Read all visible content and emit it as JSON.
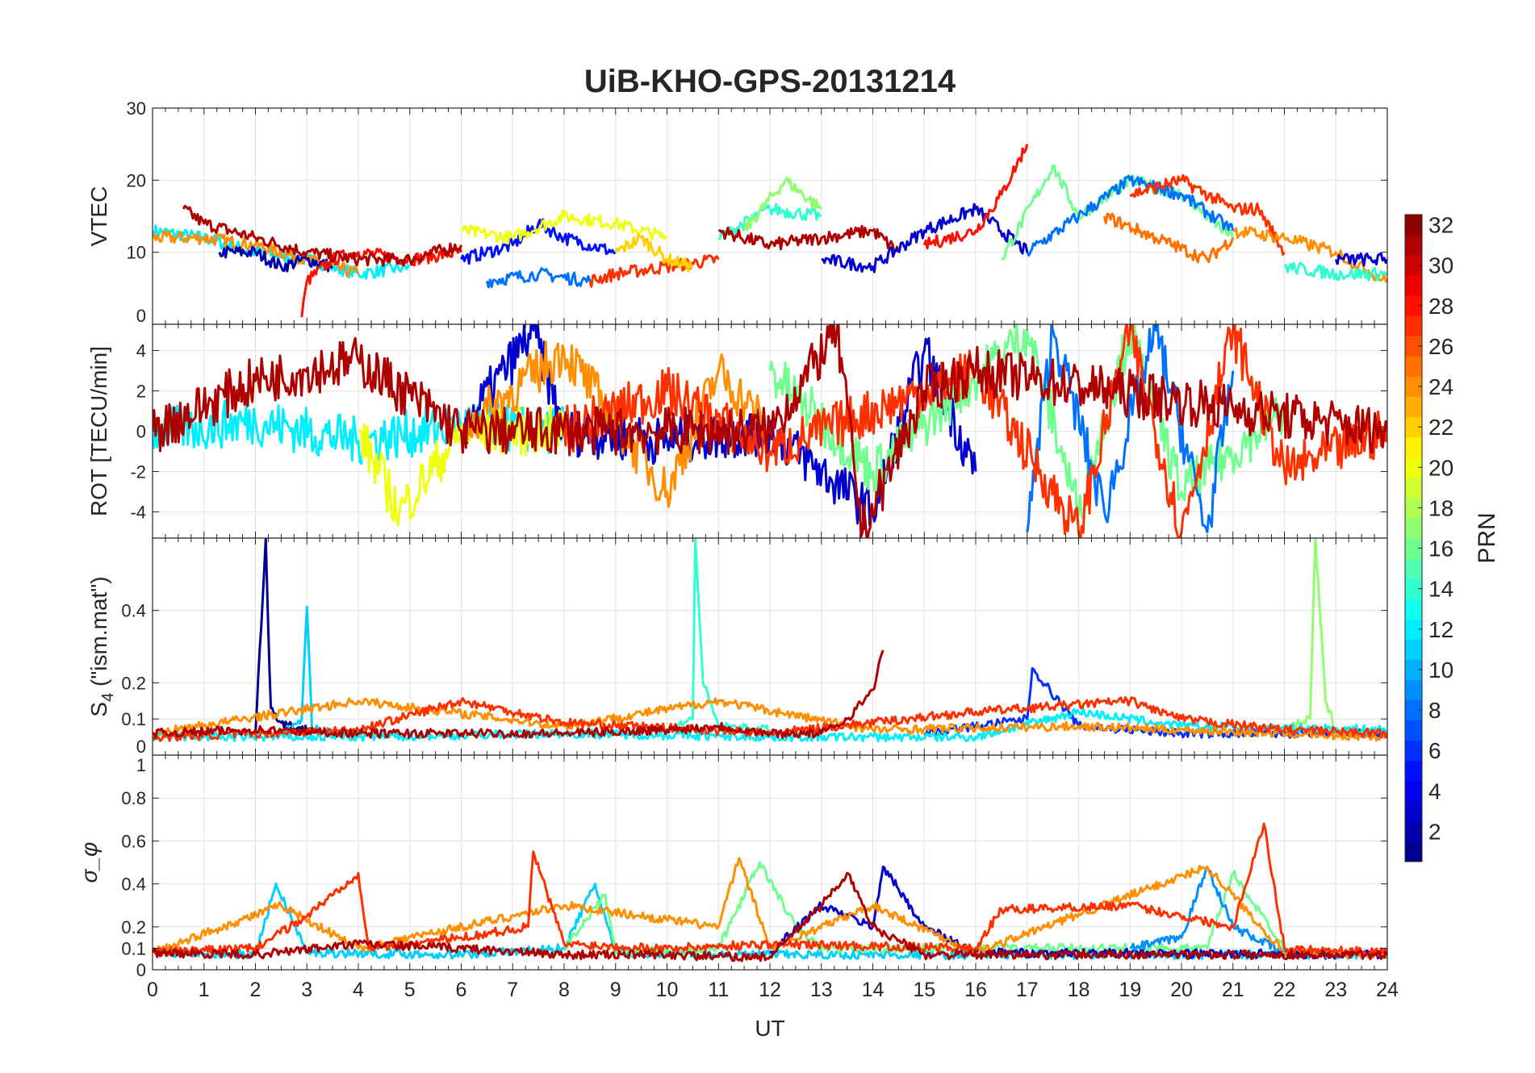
{
  "chart_data": {
    "type": "line",
    "title": "UiB-KHO-GPS-20131214",
    "xlabel": "UT",
    "xlim": [
      0,
      24
    ],
    "xticks": [
      0,
      1,
      2,
      3,
      4,
      5,
      6,
      7,
      8,
      9,
      10,
      11,
      12,
      13,
      14,
      15,
      16,
      17,
      18,
      19,
      20,
      21,
      22,
      23,
      24
    ],
    "grid": true,
    "colorbar": {
      "label": "PRN",
      "range": [
        1,
        32
      ],
      "ticks": [
        2,
        4,
        6,
        8,
        10,
        12,
        14,
        16,
        18,
        20,
        22,
        24,
        26,
        28,
        30,
        32
      ],
      "colormap": "jet",
      "placement": "right"
    },
    "panels": [
      {
        "ylabel": "VTEC",
        "ylim": [
          0,
          30
        ],
        "yticks": [
          0,
          10,
          20,
          30
        ],
        "series": [
          {
            "prn": 12,
            "x": [
              0,
              1,
              2,
              3,
              4,
              5
            ],
            "y": [
              13,
              12,
              10,
              9,
              7,
              8
            ]
          },
          {
            "prn": 24,
            "x": [
              0,
              1,
              2,
              3,
              4
            ],
            "y": [
              12,
              12,
              11,
              9,
              7
            ]
          },
          {
            "prn": 2,
            "x": [
              1.3,
              2,
              2.5,
              3,
              3.5
            ],
            "y": [
              10,
              10,
              8,
              9,
              8
            ]
          },
          {
            "prn": 28,
            "x": [
              2.9,
              3,
              3.5,
              4,
              5,
              6
            ],
            "y": [
              1,
              6,
              9,
              10,
              9,
              10
            ]
          },
          {
            "prn": 31,
            "x": [
              0.6,
              1,
              2,
              3,
              4,
              5,
              6
            ],
            "y": [
              16,
              14,
              12,
              10,
              9,
              9,
              11
            ]
          },
          {
            "prn": 5,
            "x": [
              6,
              7,
              7.5,
              8,
              9
            ],
            "y": [
              9,
              11,
              14,
              12,
              10
            ]
          },
          {
            "prn": 20,
            "x": [
              6,
              7,
              8,
              9,
              10
            ],
            "y": [
              13,
              12,
              15,
              14,
              12
            ]
          },
          {
            "prn": 8,
            "x": [
              6.5,
              7.5,
              8.5
            ],
            "y": [
              6,
              7,
              6
            ]
          },
          {
            "prn": 27,
            "x": [
              8.5,
              9,
              10,
              11
            ],
            "y": [
              6,
              7,
              8,
              9
            ]
          },
          {
            "prn": 22,
            "x": [
              9,
              9.5,
              10,
              10.5
            ],
            "y": [
              10,
              12,
              9,
              8
            ]
          },
          {
            "prn": 14,
            "x": [
              11,
              12,
              13
            ],
            "y": [
              12,
              16,
              15
            ]
          },
          {
            "prn": 17,
            "x": [
              11.5,
              12.3,
              13
            ],
            "y": [
              13,
              20,
              16
            ]
          },
          {
            "prn": 31,
            "x": [
              11,
              12,
              13,
              14,
              14.5
            ],
            "y": [
              13,
              11,
              12,
              13,
              10
            ]
          },
          {
            "prn": 3,
            "x": [
              13,
              14,
              15,
              16,
              17
            ],
            "y": [
              9,
              8,
              13,
              16,
              10
            ]
          },
          {
            "prn": 28,
            "x": [
              15,
              16,
              16.5,
              17
            ],
            "y": [
              11,
              13,
              18,
              25
            ]
          },
          {
            "prn": 16,
            "x": [
              16.5,
              17.5,
              18,
              19,
              20,
              21
            ],
            "y": [
              9,
              22,
              15,
              20,
              18,
              12
            ]
          },
          {
            "prn": 8,
            "x": [
              17,
              18,
              19,
              20,
              21
            ],
            "y": [
              10,
              15,
              20,
              18,
              13
            ]
          },
          {
            "prn": 25,
            "x": [
              18.5,
              19.5,
              20.5,
              21
            ],
            "y": [
              15,
              12,
              9,
              12
            ]
          },
          {
            "prn": 27,
            "x": [
              19,
              20,
              21,
              21.5,
              22
            ],
            "y": [
              18,
              20,
              16,
              16,
              10
            ]
          },
          {
            "prn": 24,
            "x": [
              21,
              22,
              23,
              24
            ],
            "y": [
              13,
              12,
              10,
              6
            ]
          },
          {
            "prn": 14,
            "x": [
              22,
              23,
              24
            ],
            "y": [
              8,
              7,
              7
            ]
          },
          {
            "prn": 3,
            "x": [
              23,
              24
            ],
            "y": [
              9,
              9
            ]
          }
        ]
      },
      {
        "ylabel": "ROT [TECU/min]",
        "ylim": [
          -5.3,
          5.3
        ],
        "yticks": [
          -4,
          -2,
          0,
          2,
          4
        ],
        "series": [
          {
            "prn": 12,
            "x": [
              0,
              2,
              4,
              6,
              8
            ],
            "y": [
              0,
              0.5,
              -0.5,
              0.3,
              0
            ]
          },
          {
            "prn": 3,
            "x": [
              6,
              7.4,
              8,
              10,
              12,
              14,
              15,
              16
            ],
            "y": [
              0,
              5,
              0,
              -0.5,
              0,
              -4,
              4,
              -2
            ]
          },
          {
            "prn": 20,
            "x": [
              4,
              4.8,
              6,
              8
            ],
            "y": [
              0,
              -4,
              0,
              0
            ]
          },
          {
            "prn": 24,
            "x": [
              6,
              8,
              10,
              11,
              12
            ],
            "y": [
              0,
              4,
              -3,
              3,
              0
            ]
          },
          {
            "prn": 16,
            "x": [
              12,
              14,
              17,
              18,
              19,
              20,
              22
            ],
            "y": [
              3,
              -2,
              5,
              -4,
              5,
              -3,
              1
            ]
          },
          {
            "prn": 8,
            "x": [
              17,
              17.5,
              18.5,
              19.5,
              20.5,
              21
            ],
            "y": [
              -5,
              5,
              -4,
              5,
              -5,
              3
            ]
          },
          {
            "prn": 27,
            "x": [
              8,
              10,
              12,
              16,
              18,
              19,
              20,
              21,
              22,
              24
            ],
            "y": [
              0,
              2,
              -1,
              3,
              -5,
              5,
              -5,
              5,
              -2,
              0
            ]
          },
          {
            "prn": 31,
            "x": [
              0,
              2,
              4,
              6,
              10,
              12,
              13.3,
              13.8,
              15,
              16,
              24
            ],
            "y": [
              0,
              2.5,
              3.5,
              0,
              0,
              0,
              5,
              -5,
              2,
              3,
              0
            ]
          }
        ]
      },
      {
        "ylabel": "S_4 (\"ism.mat\")",
        "ylim": [
          0,
          0.6
        ],
        "yticks": [
          0,
          0.1,
          0.2,
          0.4
        ],
        "series": [
          {
            "prn": 1,
            "x": [
              2,
              2.2,
              2.25,
              2.3,
              2.5,
              3
            ],
            "y": [
              0.06,
              0.6,
              0.35,
              0.13,
              0.09,
              0.07
            ]
          },
          {
            "prn": 11,
            "x": [
              2.5,
              2.9,
              3,
              3.1,
              4
            ],
            "y": [
              0.06,
              0.1,
              0.41,
              0.07,
              0.06
            ]
          },
          {
            "prn": 14,
            "x": [
              10,
              10.5,
              10.55,
              10.7,
              11,
              12
            ],
            "y": [
              0.07,
              0.1,
              0.6,
              0.2,
              0.08,
              0.07
            ]
          },
          {
            "prn": 17,
            "x": [
              22,
              22.5,
              22.6,
              22.8,
              23,
              24
            ],
            "y": [
              0.07,
              0.1,
              0.6,
              0.15,
              0.07,
              0.06
            ]
          },
          {
            "prn": 6,
            "x": [
              15,
              16,
              17,
              17.1,
              18,
              20,
              24
            ],
            "y": [
              0.06,
              0.08,
              0.1,
              0.24,
              0.08,
              0.06,
              0.06
            ]
          },
          {
            "prn": 12,
            "x": [
              0,
              4,
              8,
              12,
              16,
              18,
              20,
              24
            ],
            "y": [
              0.05,
              0.05,
              0.06,
              0.05,
              0.05,
              0.12,
              0.08,
              0.07
            ]
          },
          {
            "prn": 24,
            "x": [
              0,
              4,
              8,
              11,
              14,
              18,
              24
            ],
            "y": [
              0.06,
              0.15,
              0.08,
              0.15,
              0.07,
              0.08,
              0.05
            ]
          },
          {
            "prn": 27,
            "x": [
              0,
              4,
              6,
              8,
              12,
              16,
              19,
              20,
              22,
              24
            ],
            "y": [
              0.05,
              0.07,
              0.15,
              0.09,
              0.06,
              0.12,
              0.15,
              0.1,
              0.07,
              0.06
            ]
          },
          {
            "prn": 31,
            "x": [
              0,
              2,
              4,
              6,
              8,
              10,
              11,
              12,
              13,
              13.5,
              14,
              14.2
            ],
            "y": [
              0.06,
              0.07,
              0.06,
              0.06,
              0.06,
              0.07,
              0.08,
              0.06,
              0.06,
              0.1,
              0.18,
              0.29
            ]
          }
        ]
      },
      {
        "ylabel": "σ_φ",
        "ylim": [
          0,
          1
        ],
        "yticks": [
          0,
          0.1,
          0.2,
          0.4,
          0.6,
          0.8,
          1
        ],
        "series": [
          {
            "prn": 11,
            "x": [
              0,
              2,
              2.4,
              3,
              6,
              8,
              8.6,
              9,
              12,
              24
            ],
            "y": [
              0.08,
              0.07,
              0.4,
              0.08,
              0.07,
              0.1,
              0.4,
              0.08,
              0.07,
              0.07
            ]
          },
          {
            "prn": 16,
            "x": [
              8,
              8.8,
              9,
              11,
              11.8,
              12.5,
              13,
              20.5,
              21,
              22
            ],
            "y": [
              0.1,
              0.35,
              0.08,
              0.1,
              0.5,
              0.2,
              0.1,
              0.1,
              0.45,
              0.1
            ]
          },
          {
            "prn": 3,
            "x": [
              12,
              13,
              14,
              14.2,
              15,
              16,
              24
            ],
            "y": [
              0.08,
              0.3,
              0.2,
              0.48,
              0.2,
              0.08,
              0.07
            ]
          },
          {
            "prn": 9,
            "x": [
              19,
              20,
              20.5,
              21,
              22
            ],
            "y": [
              0.1,
              0.15,
              0.48,
              0.2,
              0.08
            ]
          },
          {
            "prn": 24,
            "x": [
              0,
              2.5,
              4,
              8,
              11,
              11.4,
              12,
              14,
              16,
              20.5,
              22,
              24
            ],
            "y": [
              0.08,
              0.3,
              0.1,
              0.3,
              0.2,
              0.52,
              0.1,
              0.3,
              0.08,
              0.48,
              0.08,
              0.07
            ]
          },
          {
            "prn": 27,
            "x": [
              0,
              2,
              3,
              4,
              4.2,
              6,
              7.3,
              7.4,
              8,
              10,
              12,
              16,
              16.5,
              19,
              21,
              21.6,
              22,
              24
            ],
            "y": [
              0.08,
              0.1,
              0.25,
              0.45,
              0.1,
              0.15,
              0.2,
              0.55,
              0.12,
              0.1,
              0.12,
              0.1,
              0.28,
              0.3,
              0.2,
              0.68,
              0.1,
              0.08
            ]
          },
          {
            "prn": 31,
            "x": [
              0,
              2,
              4,
              6,
              8,
              10,
              11,
              12,
              13,
              13.5,
              14,
              15,
              24
            ],
            "y": [
              0.08,
              0.07,
              0.12,
              0.1,
              0.07,
              0.07,
              0.06,
              0.06,
              0.3,
              0.45,
              0.2,
              0.07,
              0.07
            ]
          }
        ]
      }
    ]
  }
}
